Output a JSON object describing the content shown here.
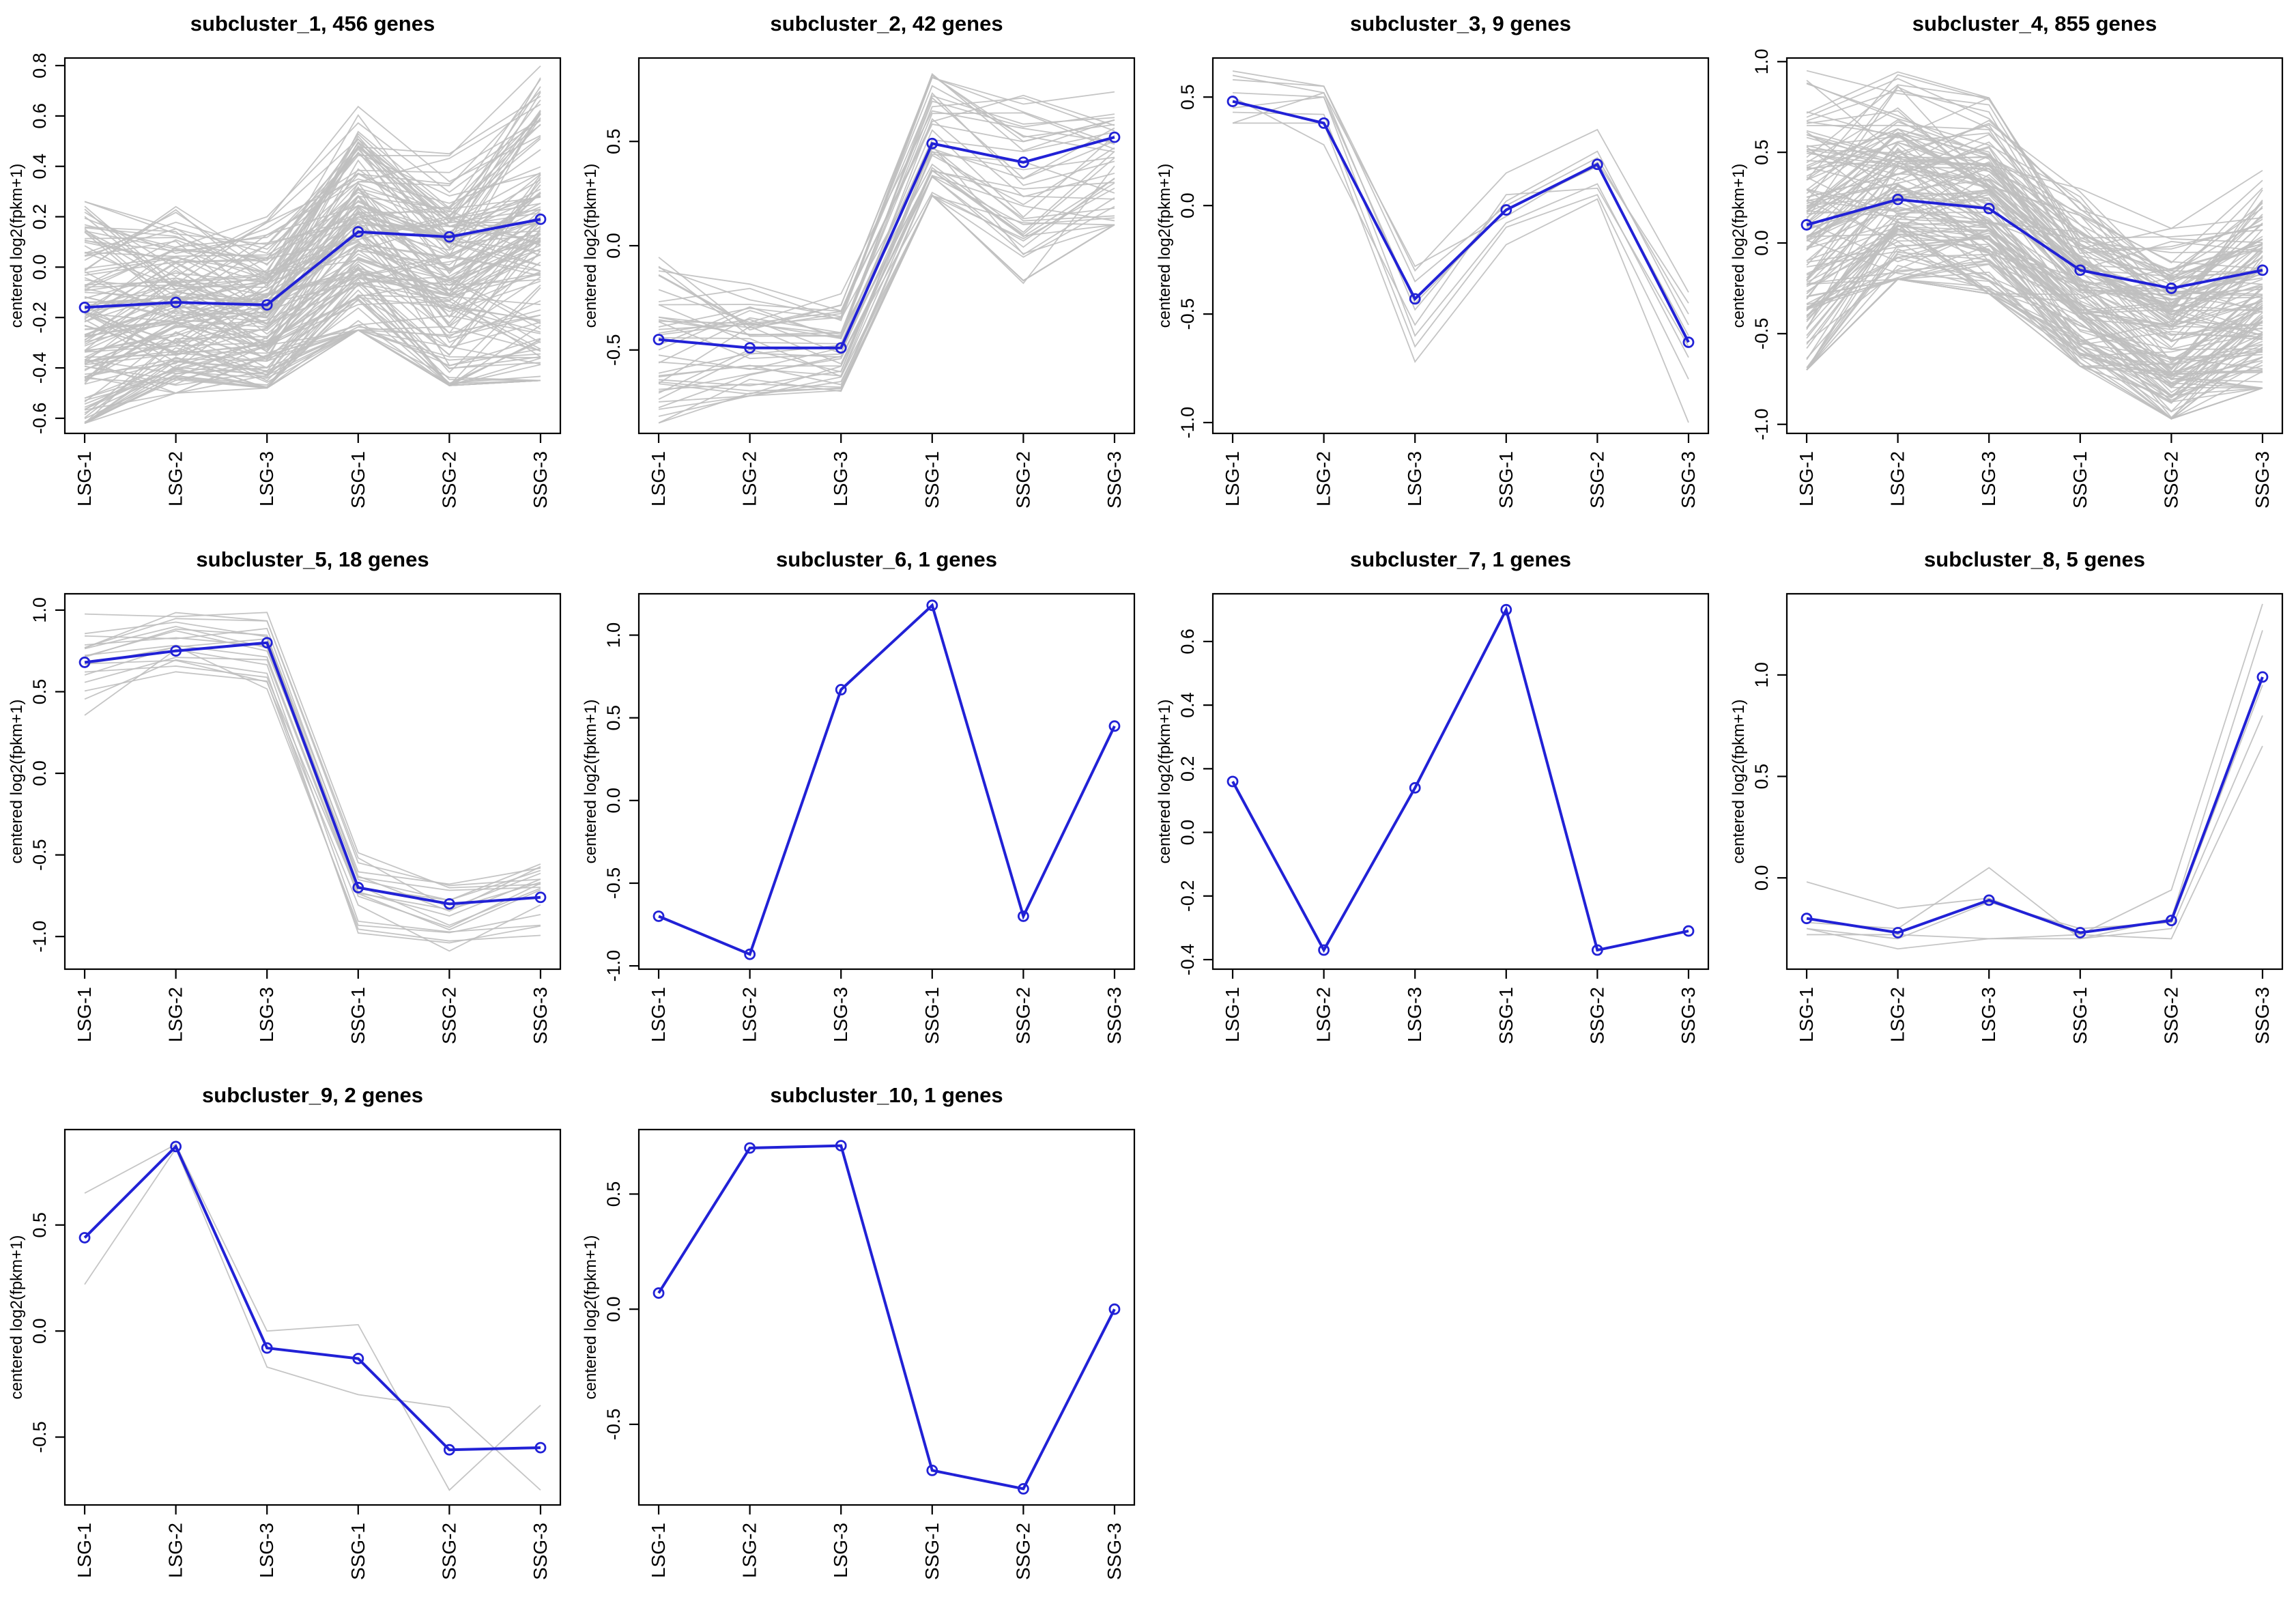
{
  "page": {
    "background": "#ffffff",
    "grid_columns": 4,
    "grid_rows": 3
  },
  "colors": {
    "mean_line": "#2121d6",
    "gene_line": "#bfbfbf",
    "axis": "#000000",
    "title_text": "#000000"
  },
  "axis": {
    "y_label": "centered log2(fpkm+1)",
    "categories": [
      "LSG-1",
      "LSG-2",
      "LSG-3",
      "SSG-1",
      "SSG-2",
      "SSG-3"
    ]
  },
  "chart_data": [
    {
      "type": "line",
      "title": "subcluster_1, 456 genes",
      "subcluster": "subcluster_1",
      "gene_count": 456,
      "ylim": [
        -0.66,
        0.83
      ],
      "yticks": [
        -0.6,
        -0.4,
        -0.2,
        0,
        0.2,
        0.4,
        0.6,
        0.8
      ],
      "mean": [
        -0.16,
        -0.14,
        -0.15,
        0.14,
        0.12,
        0.19
      ],
      "band": {
        "min": [
          -0.62,
          -0.5,
          -0.48,
          -0.25,
          -0.47,
          -0.45
        ],
        "max": [
          0.26,
          0.24,
          0.2,
          0.68,
          0.45,
          0.8
        ],
        "lines": 140
      },
      "series": null
    },
    {
      "type": "line",
      "title": "subcluster_2, 42 genes",
      "subcluster": "subcluster_2",
      "gene_count": 42,
      "ylim": [
        -0.9,
        0.9
      ],
      "yticks": [
        -0.5,
        0,
        0.5
      ],
      "mean": [
        -0.45,
        -0.49,
        -0.49,
        0.49,
        0.4,
        0.52
      ],
      "band": {
        "min": [
          -0.85,
          -0.72,
          -0.7,
          0.24,
          -0.18,
          0.1
        ],
        "max": [
          0.0,
          -0.15,
          -0.18,
          0.85,
          0.78,
          0.78
        ],
        "lines": 42
      },
      "series": null
    },
    {
      "type": "line",
      "title": "subcluster_3, 9 genes",
      "subcluster": "subcluster_3",
      "gene_count": 9,
      "ylim": [
        -1.05,
        0.68
      ],
      "yticks": [
        -1,
        -0.5,
        0,
        0.5
      ],
      "mean": [
        0.48,
        0.38,
        -0.43,
        -0.02,
        0.19,
        -0.63
      ],
      "band": null,
      "series": [
        [
          0.62,
          0.55,
          -0.3,
          0.15,
          0.35,
          -0.4
        ],
        [
          0.6,
          0.52,
          -0.28,
          -0.05,
          0.2,
          -0.45
        ],
        [
          0.58,
          0.55,
          -0.35,
          0.0,
          0.22,
          -0.5
        ],
        [
          0.52,
          0.5,
          -0.45,
          -0.02,
          0.18,
          -0.6
        ],
        [
          0.5,
          0.28,
          -0.55,
          0.05,
          0.08,
          -0.65
        ],
        [
          0.45,
          0.5,
          -0.6,
          -0.08,
          0.1,
          -0.7
        ],
        [
          0.43,
          0.42,
          -0.65,
          -0.1,
          0.05,
          -0.8
        ],
        [
          0.38,
          0.38,
          -0.72,
          -0.18,
          0.03,
          -1.0
        ],
        [
          0.38,
          0.52,
          -0.48,
          0.02,
          0.25,
          -0.55
        ]
      ]
    },
    {
      "type": "line",
      "title": "subcluster_4, 855 genes",
      "subcluster": "subcluster_4",
      "gene_count": 855,
      "ylim": [
        -1.05,
        1.02
      ],
      "yticks": [
        -1,
        -0.5,
        0,
        0.5,
        1
      ],
      "mean": [
        0.1,
        0.24,
        0.19,
        -0.15,
        -0.25,
        -0.15
      ],
      "band": {
        "min": [
          -0.7,
          -0.2,
          -0.28,
          -0.68,
          -0.97,
          -0.8
        ],
        "max": [
          0.98,
          0.95,
          0.8,
          0.3,
          0.08,
          0.4
        ],
        "lines": 140
      },
      "series": null
    },
    {
      "type": "line",
      "title": "subcluster_5, 18 genes",
      "subcluster": "subcluster_5",
      "gene_count": 18,
      "ylim": [
        -1.2,
        1.1
      ],
      "yticks": [
        -1,
        -0.5,
        0,
        0.5,
        1
      ],
      "mean": [
        0.68,
        0.75,
        0.8,
        -0.7,
        -0.8,
        -0.76
      ],
      "band": {
        "min": [
          0.35,
          0.6,
          0.5,
          -1.0,
          -1.15,
          -1.0
        ],
        "max": [
          1.05,
          1.0,
          1.0,
          -0.45,
          -0.6,
          -0.45
        ],
        "lines": 18
      },
      "series": null
    },
    {
      "type": "line",
      "title": "subcluster_6, 1 genes",
      "subcluster": "subcluster_6",
      "gene_count": 1,
      "ylim": [
        -1.02,
        1.25
      ],
      "yticks": [
        -1,
        -0.5,
        0,
        0.5,
        1
      ],
      "mean": [
        -0.7,
        -0.93,
        0.67,
        1.18,
        -0.7,
        0.45
      ],
      "band": null,
      "series": null
    },
    {
      "type": "line",
      "title": "subcluster_7, 1 genes",
      "subcluster": "subcluster_7",
      "gene_count": 1,
      "ylim": [
        -0.43,
        0.75
      ],
      "yticks": [
        -0.4,
        -0.2,
        0,
        0.2,
        0.4,
        0.6
      ],
      "mean": [
        0.16,
        -0.37,
        0.14,
        0.7,
        -0.37,
        -0.31
      ],
      "band": null,
      "series": null
    },
    {
      "type": "line",
      "title": "subcluster_8, 5 genes",
      "subcluster": "subcluster_8",
      "gene_count": 5,
      "ylim": [
        -0.45,
        1.4
      ],
      "yticks": [
        0,
        0.5,
        1
      ],
      "mean": [
        -0.2,
        -0.27,
        -0.11,
        -0.27,
        -0.21,
        0.99
      ],
      "band": null,
      "series": [
        [
          -0.02,
          -0.15,
          -0.1,
          -0.28,
          -0.06,
          1.35
        ],
        [
          -0.22,
          -0.25,
          0.05,
          -0.3,
          -0.2,
          1.22
        ],
        [
          -0.25,
          -0.3,
          -0.12,
          -0.25,
          -0.22,
          0.95
        ],
        [
          -0.25,
          -0.35,
          -0.3,
          -0.3,
          -0.25,
          0.8
        ],
        [
          -0.28,
          -0.28,
          -0.3,
          -0.28,
          -0.3,
          0.65
        ]
      ]
    },
    {
      "type": "line",
      "title": "subcluster_9, 2 genes",
      "subcluster": "subcluster_9",
      "gene_count": 2,
      "ylim": [
        -0.82,
        0.95
      ],
      "yticks": [
        -0.5,
        0,
        0.5
      ],
      "mean": [
        0.44,
        0.87,
        -0.08,
        -0.13,
        -0.56,
        -0.55
      ],
      "band": null,
      "series": [
        [
          0.65,
          0.88,
          0.0,
          0.03,
          -0.75,
          -0.35
        ],
        [
          0.22,
          0.86,
          -0.17,
          -0.3,
          -0.36,
          -0.75
        ]
      ]
    },
    {
      "type": "line",
      "title": "subcluster_10, 1 genes",
      "subcluster": "subcluster_10",
      "gene_count": 1,
      "ylim": [
        -0.85,
        0.78
      ],
      "yticks": [
        -0.5,
        0,
        0.5
      ],
      "mean": [
        0.07,
        0.7,
        0.71,
        -0.7,
        -0.78,
        0.0
      ],
      "band": null,
      "series": null
    }
  ]
}
